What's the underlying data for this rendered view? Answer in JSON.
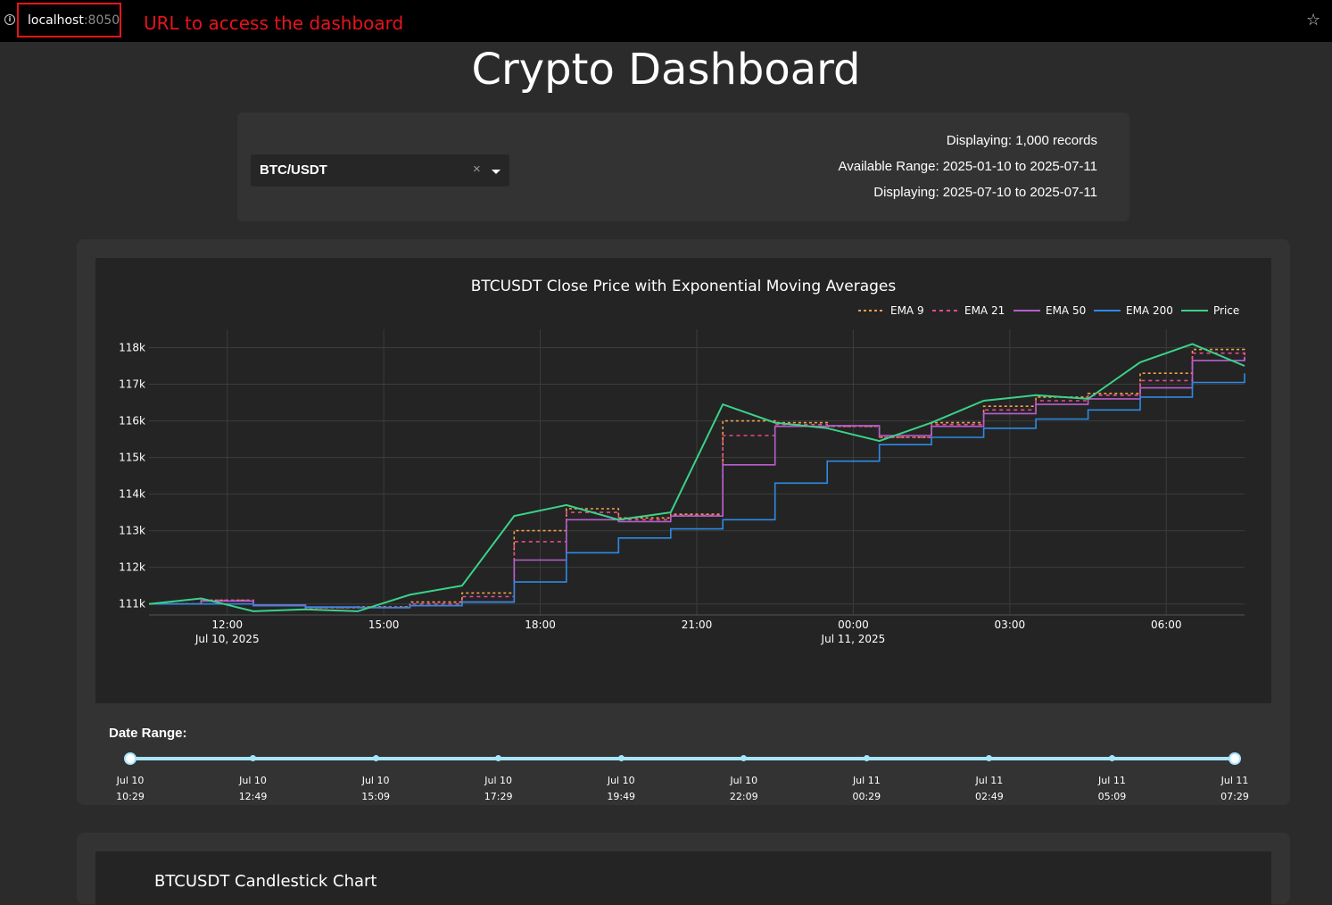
{
  "browser": {
    "url_host": "localhost",
    "url_port": ":8050",
    "annotation": "URL to access the dashboard"
  },
  "page": {
    "title": "Crypto Dashboard"
  },
  "controls": {
    "symbol_select": {
      "value": "BTC/USDT",
      "clear_glyph": "×"
    },
    "info": {
      "records": "Displaying: 1,000 records",
      "available_range": "Available Range: 2025-01-10 to 2025-07-11",
      "displaying_range": "Displaying: 2025-07-10 to 2025-07-11"
    }
  },
  "ema_chart": {
    "title": "BTCUSDT Close Price with Exponential Moving Averages",
    "chart_data": {
      "type": "line",
      "title": "BTCUSDT Close Price with Exponential Moving Averages",
      "x_range_hours": [
        "2025-07-10 10:30",
        "2025-07-11 07:30"
      ],
      "ylim": [
        110700,
        118500
      ],
      "legend_placement": "top-right",
      "grid": true,
      "x_ticks": [
        {
          "h": 12,
          "line1": "12:00",
          "line2": "Jul 10, 2025"
        },
        {
          "h": 15,
          "line1": "15:00",
          "line2": ""
        },
        {
          "h": 18,
          "line1": "18:00",
          "line2": ""
        },
        {
          "h": 21,
          "line1": "21:00",
          "line2": ""
        },
        {
          "h": 24,
          "line1": "00:00",
          "line2": "Jul 11, 2025"
        },
        {
          "h": 27,
          "line1": "03:00",
          "line2": ""
        },
        {
          "h": 30,
          "line1": "06:00",
          "line2": ""
        }
      ],
      "y_ticks": [
        {
          "v": 111000,
          "label": "111k"
        },
        {
          "v": 112000,
          "label": "112k"
        },
        {
          "v": 113000,
          "label": "113k"
        },
        {
          "v": 114000,
          "label": "114k"
        },
        {
          "v": 115000,
          "label": "115k"
        },
        {
          "v": 116000,
          "label": "116k"
        },
        {
          "v": 117000,
          "label": "117k"
        },
        {
          "v": 118000,
          "label": "118k"
        }
      ],
      "x_hours": [
        10.5,
        11.5,
        12.5,
        13.5,
        14.5,
        15.5,
        16.5,
        17.5,
        18.5,
        19.5,
        20.5,
        21.5,
        22.5,
        23.5,
        24.5,
        25.5,
        26.5,
        27.5,
        28.5,
        29.5,
        30.5,
        31.5
      ],
      "series": [
        {
          "name": "EMA 9",
          "color": "#f5a04a",
          "dash": "3,3",
          "values": [
            111000,
            111100,
            110950,
            110900,
            110920,
            111050,
            111300,
            113000,
            113600,
            113350,
            113450,
            116000,
            115950,
            115850,
            115550,
            115950,
            116400,
            116650,
            116750,
            117300,
            117950,
            117650
          ]
        },
        {
          "name": "EMA 21",
          "color": "#ea4a8f",
          "dash": "4,4",
          "values": [
            111000,
            111100,
            110960,
            110900,
            110910,
            111000,
            111200,
            112700,
            113500,
            113300,
            113420,
            115600,
            115900,
            115850,
            115550,
            115900,
            116300,
            116550,
            116700,
            117100,
            117850,
            117700
          ]
        },
        {
          "name": "EMA 50",
          "color": "#b65fcf",
          "dash": "",
          "values": [
            111000,
            111080,
            110970,
            110910,
            110900,
            110950,
            111050,
            112200,
            113300,
            113250,
            113400,
            114800,
            115850,
            115870,
            115600,
            115850,
            116200,
            116450,
            116600,
            116900,
            117650,
            117750
          ]
        },
        {
          "name": "EMA 200",
          "color": "#2d8ae6",
          "dash": "",
          "values": [
            111000,
            111000,
            110950,
            110920,
            110900,
            110950,
            111050,
            111600,
            112400,
            112800,
            113050,
            113300,
            114300,
            114900,
            115350,
            115550,
            115800,
            116050,
            116300,
            116650,
            117050,
            117300
          ]
        },
        {
          "name": "Price",
          "color": "#3ad289",
          "dash": "",
          "values": [
            111000,
            111150,
            110800,
            110850,
            110800,
            111250,
            111500,
            113400,
            113700,
            113300,
            113500,
            116450,
            115950,
            115800,
            115450,
            115950,
            116550,
            116700,
            116600,
            117600,
            118100,
            117500
          ]
        }
      ]
    }
  },
  "date_range": {
    "label": "Date Range:",
    "marks": [
      {
        "date": "Jul 10",
        "time": "10:29"
      },
      {
        "date": "Jul 10",
        "time": "12:49"
      },
      {
        "date": "Jul 10",
        "time": "15:09"
      },
      {
        "date": "Jul 10",
        "time": "17:29"
      },
      {
        "date": "Jul 10",
        "time": "19:49"
      },
      {
        "date": "Jul 10",
        "time": "22:09"
      },
      {
        "date": "Jul 11",
        "time": "00:29"
      },
      {
        "date": "Jul 11",
        "time": "02:49"
      },
      {
        "date": "Jul 11",
        "time": "05:09"
      },
      {
        "date": "Jul 11",
        "time": "07:29"
      }
    ],
    "selected_start_index": 0,
    "selected_end_index": 9
  },
  "candlestick": {
    "title": "BTCUSDT Candlestick Chart"
  }
}
